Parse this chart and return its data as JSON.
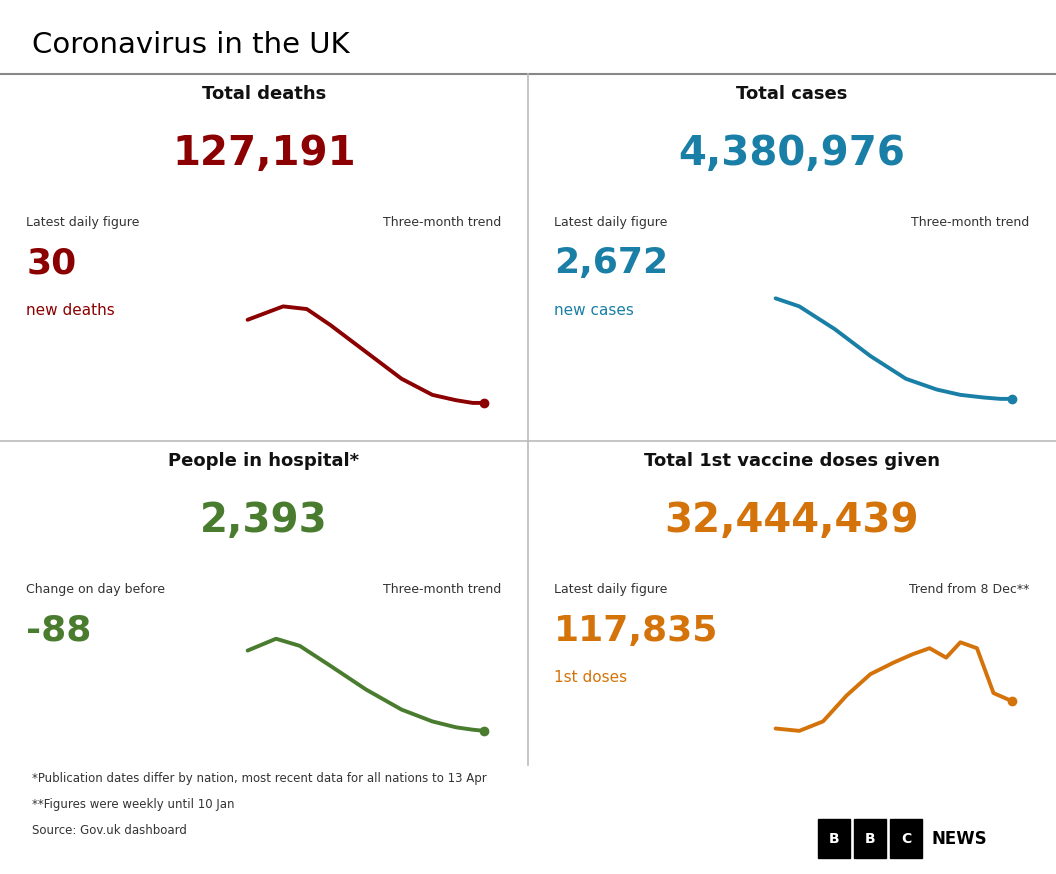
{
  "title": "Coronavirus in the UK",
  "bg_color": "#ffffff",
  "title_color": "#000000",
  "top_left": {
    "section_title": "Total deaths",
    "total_value": "127,191",
    "total_color": "#8b0000",
    "label1": "Latest daily figure",
    "label2": "Three-month trend",
    "daily_value": "30",
    "daily_label": "new deaths",
    "daily_color": "#8b0000",
    "trend_color": "#8b0000",
    "trend_x": [
      0,
      0.15,
      0.25,
      0.35,
      0.5,
      0.65,
      0.78,
      0.88,
      0.95,
      1.0
    ],
    "trend_y": [
      0.72,
      0.82,
      0.8,
      0.68,
      0.48,
      0.28,
      0.16,
      0.12,
      0.1,
      0.1
    ]
  },
  "top_right": {
    "section_title": "Total cases",
    "total_value": "4,380,976",
    "total_color": "#1a7fa6",
    "label1": "Latest daily figure",
    "label2": "Three-month trend",
    "daily_value": "2,672",
    "daily_label": "new cases",
    "daily_color": "#1a7fa6",
    "trend_color": "#1a7fa6",
    "trend_x": [
      0,
      0.1,
      0.25,
      0.4,
      0.55,
      0.68,
      0.78,
      0.88,
      0.95,
      1.0
    ],
    "trend_y": [
      0.88,
      0.82,
      0.65,
      0.45,
      0.28,
      0.2,
      0.16,
      0.14,
      0.13,
      0.13
    ]
  },
  "bottom_left": {
    "section_title": "People in hospital*",
    "total_value": "2,393",
    "total_color": "#4a7c2f",
    "label1": "Change on day before",
    "label2": "Three-month trend",
    "daily_value": "-88",
    "daily_label": "",
    "daily_color": "#4a7c2f",
    "trend_color": "#4a7c2f",
    "trend_x": [
      0,
      0.12,
      0.22,
      0.35,
      0.5,
      0.65,
      0.78,
      0.88,
      0.95,
      1.0
    ],
    "trend_y": [
      0.78,
      0.88,
      0.82,
      0.65,
      0.45,
      0.28,
      0.18,
      0.13,
      0.11,
      0.1
    ]
  },
  "bottom_right": {
    "section_title": "Total 1st vaccine doses given",
    "total_value": "32,444,439",
    "total_color": "#d4730a",
    "label1": "Latest daily figure",
    "label2": "Trend from 8 Dec**",
    "daily_value": "117,835",
    "daily_label": "1st doses",
    "daily_color": "#d4730a",
    "trend_color": "#d4730a",
    "trend_x": [
      0,
      0.1,
      0.2,
      0.3,
      0.4,
      0.5,
      0.58,
      0.65,
      0.72,
      0.78,
      0.85,
      0.92,
      1.0
    ],
    "trend_y": [
      0.12,
      0.1,
      0.18,
      0.4,
      0.58,
      0.68,
      0.75,
      0.8,
      0.72,
      0.85,
      0.8,
      0.42,
      0.35
    ]
  },
  "footnotes": [
    "*Publication dates differ by nation, most recent data for all nations to 13 Apr",
    "**Figures were weekly until 10 Jan",
    "Source: Gov.uk dashboard"
  ]
}
